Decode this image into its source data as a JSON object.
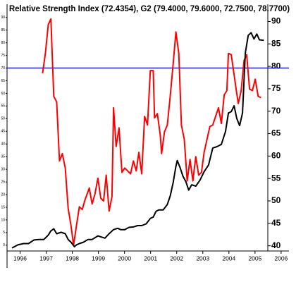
{
  "chart_data": {
    "type": "line",
    "title": "Relative Strength Index (72.4354), G2 (79.4000, 79.6000, 72.7500, 78.7700)",
    "xlim": [
      1996,
      2006.8
    ],
    "xticks": [
      {
        "value": 1996.5,
        "label": "1996"
      },
      {
        "value": 1997.5,
        "label": "1997"
      },
      {
        "value": 1998.5,
        "label": "1998"
      },
      {
        "value": 1999.5,
        "label": "1999"
      },
      {
        "value": 2000.5,
        "label": "2000"
      },
      {
        "value": 2001.5,
        "label": "2001"
      },
      {
        "value": 2002.5,
        "label": "2002"
      },
      {
        "value": 2003.5,
        "label": "2003"
      },
      {
        "value": 2004.5,
        "label": "2004"
      },
      {
        "value": 2005.5,
        "label": "2005"
      },
      {
        "value": 2006.5,
        "label": "2006"
      }
    ],
    "ylim": [
      -2,
      95.5
    ],
    "yticks": [
      0,
      5,
      10,
      15,
      20,
      25,
      30,
      35,
      40,
      45,
      50,
      55,
      60,
      65,
      70,
      75,
      80,
      85,
      90
    ],
    "y2lim": [
      39,
      94
    ],
    "y2ticks": [
      40,
      45,
      50,
      55,
      60,
      65,
      70,
      75,
      80,
      85,
      90
    ],
    "reference_line": {
      "value": 70,
      "color": "#1f1fbf"
    },
    "series": [
      {
        "color": "#ff0000",
        "axis": "y",
        "x": [
          1997.36,
          1997.47,
          1997.58,
          1997.68,
          1997.79,
          1997.9,
          1998.01,
          1998.12,
          1998.23,
          1998.34,
          1998.45,
          1998.55,
          1998.66,
          1998.77,
          1998.88,
          1998.99,
          1999.15,
          1999.26,
          1999.37,
          1999.48,
          1999.59,
          1999.7,
          1999.8,
          1999.91,
          2000.02,
          2000.08,
          2000.18,
          2000.29,
          2000.4,
          2000.51,
          2000.62,
          2000.73,
          2000.84,
          2000.95,
          2001.05,
          2001.16,
          2001.27,
          2001.38,
          2001.49,
          2001.6,
          2001.65,
          2001.76,
          2001.87,
          2001.92,
          2002.03,
          2002.14,
          2002.25,
          2002.36,
          2002.47,
          2002.58,
          2002.68,
          2002.79,
          2002.9,
          2003.01,
          2003.12,
          2003.23,
          2003.34,
          2003.45,
          2003.55,
          2003.66,
          2003.77,
          2003.88,
          2003.99,
          2004.1,
          2004.21,
          2004.32,
          2004.42,
          2004.48,
          2004.59,
          2004.7,
          2004.8,
          2004.86,
          2004.97,
          2005.08,
          2005.18,
          2005.29,
          2005.4,
          2005.51,
          2005.62,
          2005.73
        ],
        "values": [
          67.9,
          75.8,
          87.2,
          89.4,
          58.8,
          56.6,
          33.3,
          36.2,
          30.5,
          14.6,
          7.8,
          0,
          7.8,
          15.2,
          14.1,
          18.0,
          22.6,
          16.3,
          20.3,
          26.5,
          18.6,
          17.5,
          27.7,
          13.5,
          19.2,
          54.3,
          39.0,
          46.4,
          28.8,
          30.5,
          29.4,
          28.2,
          33.3,
          29.4,
          36.7,
          28.2,
          50.9,
          47.5,
          69.0,
          69.0,
          50.3,
          52.0,
          43.5,
          36.2,
          44.7,
          47.5,
          58.8,
          71.3,
          84.3,
          75.8,
          47.5,
          41.8,
          25.4,
          33.9,
          25.4,
          35.0,
          27.7,
          28.8,
          36.7,
          41.8,
          46.9,
          47.5,
          50.9,
          54.3,
          48.1,
          59.4,
          61.1,
          75.8,
          75.3,
          67.3,
          60.0,
          56.0,
          61.1,
          73.0,
          75.3,
          61.7,
          61.1,
          65.6,
          58.8,
          58.3
        ]
      },
      {
        "color": "#000000",
        "axis": "y2",
        "x": [
          1996.19,
          1996.41,
          1996.63,
          1996.82,
          1997.03,
          1997.22,
          1997.41,
          1997.58,
          1997.68,
          1997.79,
          1997.9,
          1998.07,
          1998.23,
          1998.34,
          1998.45,
          1998.58,
          1998.66,
          1998.77,
          1998.93,
          1999.1,
          1999.26,
          1999.48,
          1999.59,
          1999.75,
          1999.91,
          2000.08,
          2000.24,
          2000.35,
          2000.51,
          2000.67,
          2000.84,
          2001.0,
          2001.16,
          2001.33,
          2001.49,
          2001.6,
          2001.71,
          2001.82,
          2001.98,
          2002.14,
          2002.25,
          2002.36,
          2002.47,
          2002.52,
          2002.63,
          2002.74,
          2002.85,
          2002.96,
          2003.07,
          2003.23,
          2003.39,
          2003.55,
          2003.72,
          2003.88,
          2004.04,
          2004.21,
          2004.37,
          2004.48,
          2004.59,
          2004.7,
          2004.8,
          2004.91,
          2005.02,
          2005.13,
          2005.24,
          2005.35,
          2005.46,
          2005.57,
          2005.67,
          2005.84
        ],
        "values": [
          39.5,
          40.2,
          40.5,
          40.5,
          41.3,
          41.4,
          41.4,
          42.4,
          43.3,
          43.8,
          42.7,
          43.0,
          42.7,
          41.4,
          40.8,
          39.8,
          40.2,
          40.5,
          40.8,
          41.4,
          41.4,
          42.2,
          42.0,
          41.7,
          42.7,
          43.6,
          43.9,
          43.6,
          43.6,
          44.1,
          44.2,
          44.5,
          44.5,
          44.9,
          46.1,
          46.4,
          47.7,
          48.0,
          48.0,
          49.2,
          51.1,
          54.0,
          57.7,
          59.0,
          57.4,
          55.5,
          54.3,
          52.4,
          53.6,
          53.3,
          54.6,
          56.5,
          58.0,
          61.8,
          62.1,
          62.6,
          65.5,
          69.6,
          69.9,
          71.2,
          68.4,
          66.8,
          69.6,
          83.0,
          86.9,
          87.5,
          86.1,
          87.2,
          85.9,
          85.8
        ]
      }
    ]
  }
}
